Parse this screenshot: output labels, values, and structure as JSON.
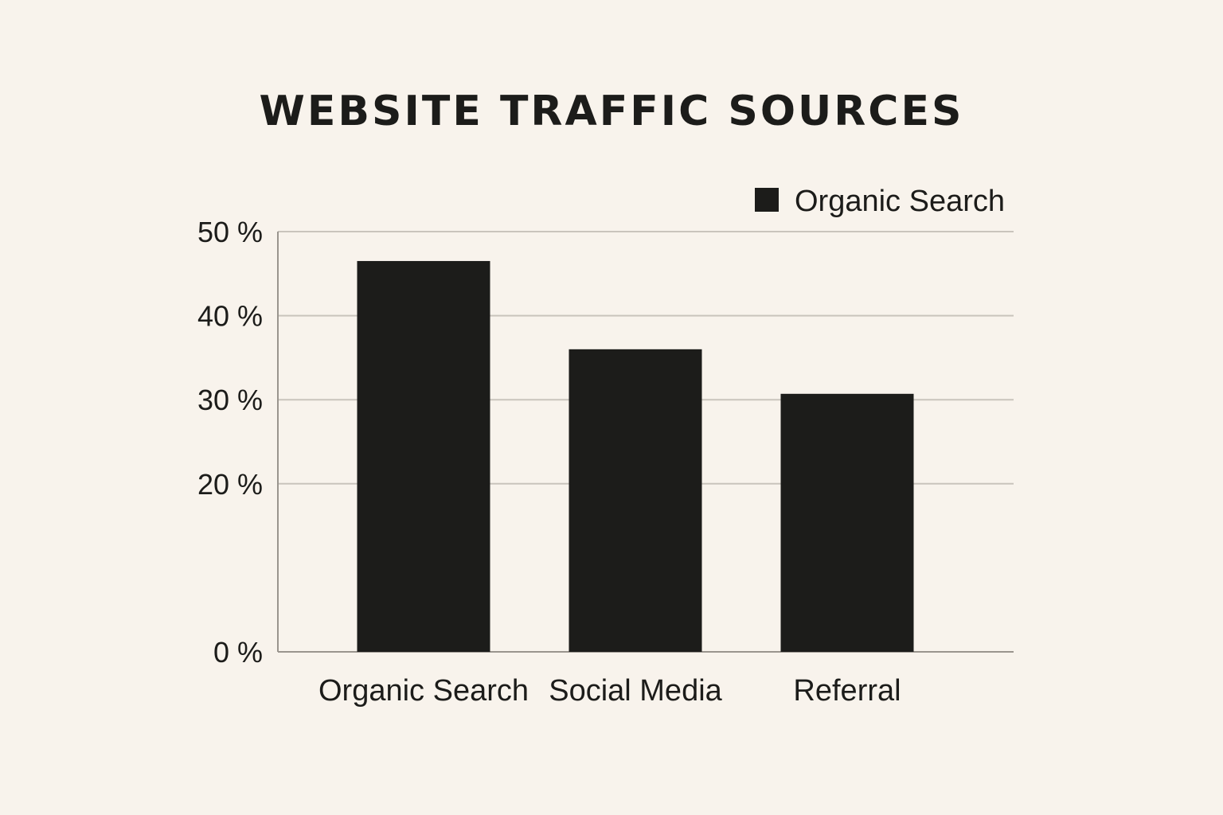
{
  "chart_data": {
    "type": "bar",
    "title": "WEBSITE TRAFFIC SOURCES",
    "categories": [
      "Organic Search",
      "Social Media",
      "Referral"
    ],
    "series": [
      {
        "name": "Organic Search",
        "values": [
          46.5,
          36,
          30.7
        ]
      }
    ],
    "y_ticks": [
      {
        "value": 0,
        "label": "0 %"
      },
      {
        "value": 20,
        "label": "20 %"
      },
      {
        "value": 30,
        "label": "30 %"
      },
      {
        "value": 40,
        "label": "40 %"
      },
      {
        "value": 50,
        "label": "50 %"
      }
    ],
    "xlabel": "",
    "ylabel": "",
    "ylim": [
      0,
      50
    ],
    "grid": true,
    "legend_position": "top-right",
    "colors": {
      "bar": "#1c1c1a",
      "grid": "#c9c4bc",
      "axis": "#9a958e",
      "background": "#f8f3ec",
      "text": "#1c1c1a"
    }
  }
}
